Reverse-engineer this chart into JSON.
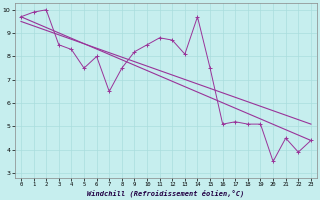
{
  "x": [
    0,
    1,
    2,
    3,
    4,
    5,
    6,
    7,
    8,
    9,
    10,
    11,
    12,
    13,
    14,
    15,
    16,
    17,
    18,
    19,
    20,
    21,
    22,
    23
  ],
  "y_data": [
    9.7,
    9.9,
    10.0,
    8.5,
    8.3,
    7.5,
    8.0,
    6.5,
    7.5,
    8.2,
    8.5,
    8.8,
    8.7,
    8.1,
    9.7,
    7.5,
    5.1,
    5.2,
    5.1,
    5.1,
    3.5,
    4.5,
    3.9,
    4.4
  ],
  "line1_start": 9.7,
  "line1_end": 4.4,
  "line2_start": 9.5,
  "line2_end": 5.1,
  "background_color": "#c6eeee",
  "grid_color": "#aadddd",
  "line_color": "#993399",
  "xlabel": "Windchill (Refroidissement éolien,°C)",
  "xlim": [
    -0.5,
    23.5
  ],
  "ylim": [
    2.8,
    10.3
  ],
  "yticks": [
    3,
    4,
    5,
    6,
    7,
    8,
    9,
    10
  ],
  "xticks": [
    0,
    1,
    2,
    3,
    4,
    5,
    6,
    7,
    8,
    9,
    10,
    11,
    12,
    13,
    14,
    15,
    16,
    17,
    18,
    19,
    20,
    21,
    22,
    23
  ]
}
